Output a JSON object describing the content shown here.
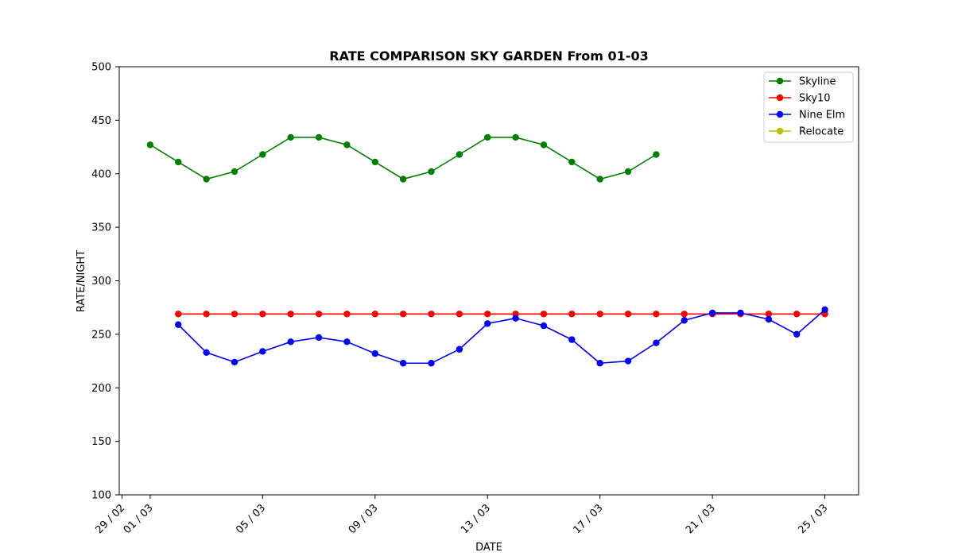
{
  "chart_data": {
    "type": "line",
    "title": "RATE COMPARISON SKY GARDEN From 01-03",
    "xlabel": "DATE",
    "ylabel": "RATE/NIGHT",
    "ylim": [
      100,
      500
    ],
    "yticks": [
      100,
      150,
      200,
      250,
      300,
      350,
      400,
      450,
      500
    ],
    "xticks": [
      "29 / 02",
      "01 / 03",
      "05 / 03",
      "09 / 03",
      "13 / 03",
      "17 / 03",
      "21 / 03",
      "25 / 03"
    ],
    "x_unit": "day of March (29 / 02 = day 0)",
    "xlim": [
      -0.1,
      26.2
    ],
    "xtick_days": [
      0,
      1,
      5,
      9,
      13,
      17,
      21,
      25
    ],
    "grid": false,
    "legend_position": "top-right",
    "series": [
      {
        "name": "Skyline",
        "color": "#008000",
        "x": [
          1,
          2,
          3,
          4,
          5,
          6,
          7,
          8,
          9,
          10,
          11,
          12,
          13,
          14,
          15,
          16,
          17,
          18,
          19
        ],
        "values": [
          427,
          411,
          395,
          402,
          418,
          434,
          434,
          427,
          411,
          395,
          402,
          418,
          434,
          434,
          427,
          411,
          395,
          402,
          418
        ]
      },
      {
        "name": "Sky10",
        "color": "#ff0000",
        "x": [
          2,
          3,
          4,
          5,
          6,
          7,
          8,
          9,
          10,
          11,
          12,
          13,
          14,
          15,
          16,
          17,
          18,
          19,
          20,
          21,
          22,
          23,
          24,
          25
        ],
        "values": [
          269,
          269,
          269,
          269,
          269,
          269,
          269,
          269,
          269,
          269,
          269,
          269,
          269,
          269,
          269,
          269,
          269,
          269,
          269,
          269,
          269,
          269,
          269,
          269
        ]
      },
      {
        "name": "Nine Elm",
        "color": "#0000ff",
        "x": [
          2,
          3,
          4,
          5,
          6,
          7,
          8,
          9,
          10,
          11,
          12,
          13,
          14,
          15,
          16,
          17,
          18,
          19,
          20,
          21,
          22,
          23,
          24,
          25
        ],
        "values": [
          259,
          233,
          224,
          234,
          243,
          247,
          243,
          232,
          223,
          223,
          236,
          260,
          265,
          258,
          245,
          223,
          225,
          242,
          263,
          270,
          270,
          264,
          250,
          273
        ]
      },
      {
        "name": "Relocate",
        "color": "#bfbf00",
        "x": [],
        "values": []
      }
    ]
  }
}
